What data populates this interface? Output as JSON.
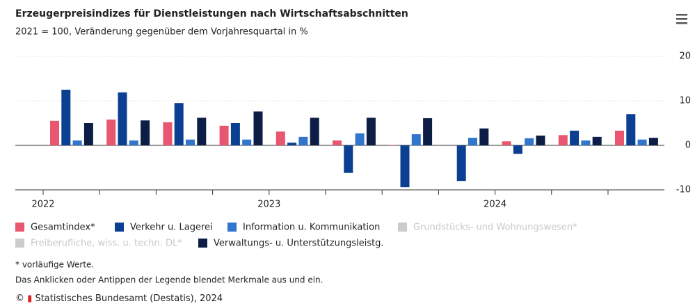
{
  "chart_data": {
    "type": "bar",
    "title": "Erzeugerpreisindizes für Dienstleistungen nach Wirtschaftsabschnitten",
    "subtitle": "2021 = 100, Veränderung gegenüber dem Vorjahresquartal in %",
    "categories": [
      "2022",
      null,
      null,
      null,
      "2023",
      null,
      null,
      null,
      "2024",
      null,
      null
    ],
    "series": [
      {
        "name": "Gesamtindex*",
        "color": "#e8566f",
        "visible": true,
        "values": [
          5.5,
          5.8,
          5.2,
          4.4,
          3.1,
          1.1,
          0.1,
          0,
          0.9,
          2.3,
          3.3
        ]
      },
      {
        "name": "Verkehr u. Lagerei",
        "color": "#0b3f91",
        "visible": true,
        "values": [
          12.5,
          11.9,
          9.5,
          5.0,
          0.6,
          -6.2,
          -9.4,
          -8.0,
          -1.9,
          3.3,
          7.0
        ]
      },
      {
        "name": "Information u. Kommunikation",
        "color": "#2f76cc",
        "visible": true,
        "values": [
          1.1,
          1.1,
          1.3,
          1.3,
          1.9,
          2.7,
          2.5,
          1.7,
          1.6,
          1.1,
          1.3
        ]
      },
      {
        "name": "Grundstücks- und Wohnungswesen*",
        "color": "#cccccc",
        "visible": false,
        "values": [
          null,
          null,
          null,
          null,
          null,
          null,
          null,
          null,
          null,
          null,
          null
        ]
      },
      {
        "name": "Freiberufliche, wiss. u. techn. DL*",
        "color": "#cccccc",
        "visible": false,
        "values": [
          null,
          null,
          null,
          null,
          null,
          null,
          null,
          null,
          null,
          null,
          null
        ]
      },
      {
        "name": "Verwaltungs- u. Unterstützungsleistg.",
        "color": "#0c1e45",
        "visible": true,
        "values": [
          5.0,
          5.6,
          6.2,
          7.6,
          6.2,
          6.2,
          6.1,
          3.8,
          2.2,
          1.9,
          1.7
        ]
      }
    ],
    "ylim": [
      -10,
      20
    ],
    "yticks": [
      -10,
      0,
      10,
      20
    ],
    "grid": true,
    "notes": [
      "* vorläufige Werte.",
      "Das Anklicken oder Antippen der Legende blendet Merkmale aus und ein."
    ],
    "source": "Statistisches Bundesamt (Destatis), 2024"
  }
}
